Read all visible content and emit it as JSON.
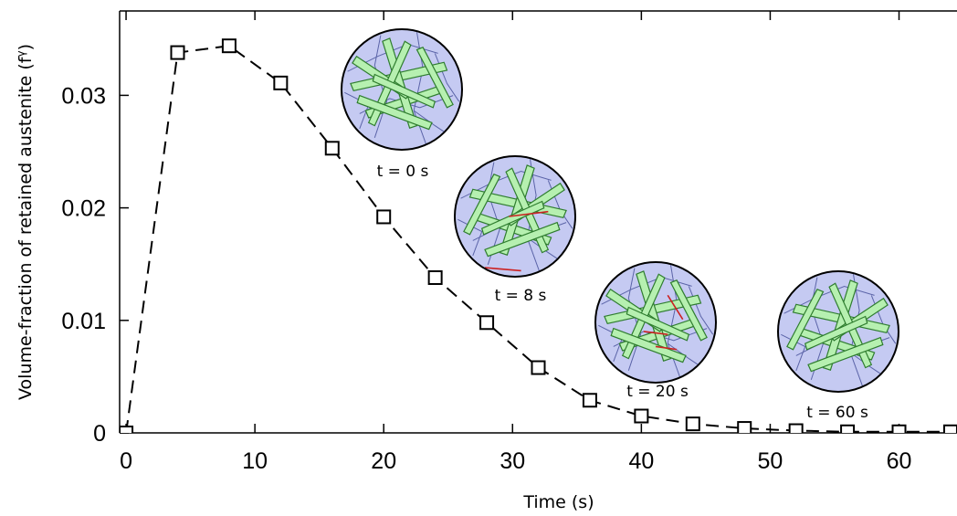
{
  "chart_data": {
    "type": "line",
    "title": "",
    "xlabel": "Time (s)",
    "ylabel": "Volume-fraction of retained austenite (f",
    "ylabel_sup": "γ",
    "ylabel_close": ")",
    "xlim": [
      -0.5,
      64.5
    ],
    "ylim": [
      0,
      0.0375
    ],
    "x_ticks": [
      0,
      10,
      20,
      30,
      40,
      50,
      60
    ],
    "x_tick_labels": [
      "0",
      "10",
      "20",
      "30",
      "40",
      "50",
      "60"
    ],
    "y_ticks": [
      0,
      0.01,
      0.02,
      0.03
    ],
    "y_tick_labels": [
      "0",
      "0.01",
      "0.02",
      "0.03"
    ],
    "grid": false,
    "series": [
      {
        "marker": "square",
        "line_style": "dashed",
        "color": "#000000",
        "x": [
          0,
          4,
          8,
          12,
          16,
          20,
          24,
          28,
          32,
          36,
          40,
          44,
          48,
          52,
          56,
          60,
          64
        ],
        "y": [
          0,
          0.0338,
          0.0344,
          0.0311,
          0.0253,
          0.0192,
          0.0138,
          0.0098,
          0.0058,
          0.0029,
          0.0015,
          0.0008,
          0.0004,
          0.0002,
          0.0001,
          0.0001,
          0.0001
        ]
      }
    ],
    "insets": [
      {
        "label": "t = 0 s"
      },
      {
        "label": "t = 8 s"
      },
      {
        "label": "t = 20 s"
      },
      {
        "label": "t = 60 s"
      }
    ],
    "colors": {
      "grain_fill": "#c5caf2",
      "martensite_fill": "#b6f0b0",
      "martensite_edge": "#2f7d2f",
      "austenite_mark": "#cc2222"
    }
  }
}
